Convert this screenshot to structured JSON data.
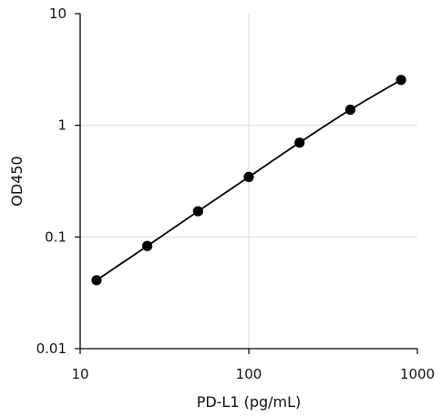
{
  "chart_data": {
    "type": "scatter",
    "title": "",
    "xlabel": "PD-L1 (pg/mL)",
    "ylabel": "OD450",
    "xscale": "log",
    "yscale": "log",
    "xlim": [
      10,
      1000
    ],
    "ylim": [
      0.01,
      10
    ],
    "grid": true,
    "x_ticks": [
      10,
      100,
      1000
    ],
    "x_tick_labels": [
      "10",
      "100",
      "1000"
    ],
    "y_ticks": [
      0.01,
      0.1,
      1,
      10
    ],
    "y_tick_labels": [
      "0.01",
      "0.1",
      "1",
      "10"
    ],
    "series": [
      {
        "x": [
          12.5,
          25,
          50,
          100,
          200,
          400,
          800
        ],
        "y": [
          0.041,
          0.083,
          0.17,
          0.345,
          0.7,
          1.38,
          2.55
        ],
        "marker": "circle",
        "line": "curve",
        "color": "#000000"
      }
    ]
  }
}
